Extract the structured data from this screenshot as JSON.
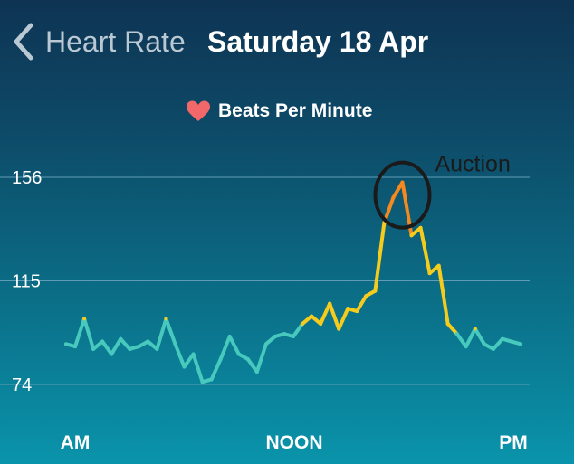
{
  "header": {
    "back_icon": "chevron-left-icon",
    "title": "Heart Rate",
    "date": "Saturday 18 Apr"
  },
  "legend": {
    "icon": "heart-icon",
    "icon_color": "#f2676a",
    "label": "Beats Per Minute"
  },
  "annotation": {
    "label": "Auction"
  },
  "colors": {
    "low": "#48c9bd",
    "mid": "#f5cc1d",
    "high": "#f5891e",
    "grid": "#5f9db6"
  },
  "chart_data": {
    "type": "line",
    "y_ticks": [
      156,
      115,
      74
    ],
    "ylim": [
      74,
      156
    ],
    "x_tick_labels": [
      "AM",
      "NOON",
      "PM"
    ],
    "x": [
      0,
      2,
      4,
      6,
      8,
      10,
      12,
      14,
      16,
      18,
      20,
      22,
      24,
      26,
      28,
      30,
      32,
      34,
      36,
      38,
      40,
      42,
      44,
      46,
      48,
      50,
      52,
      54,
      56,
      58,
      60,
      62,
      64,
      66,
      68,
      70,
      72,
      74,
      76,
      78,
      80,
      82,
      84,
      86,
      88,
      90,
      92,
      94,
      96,
      98,
      100
    ],
    "values": [
      90,
      89,
      100,
      88,
      91,
      86,
      92,
      88,
      89,
      91,
      88,
      100,
      90,
      81,
      86,
      75,
      76,
      84,
      93,
      86,
      84,
      79,
      90,
      93,
      94,
      93,
      98,
      101,
      98,
      106,
      96,
      104,
      103,
      109,
      111,
      138,
      148,
      154,
      133,
      136,
      118,
      121,
      98,
      94,
      89,
      96,
      90,
      88,
      92,
      91,
      90
    ],
    "annotation": "Auction"
  }
}
